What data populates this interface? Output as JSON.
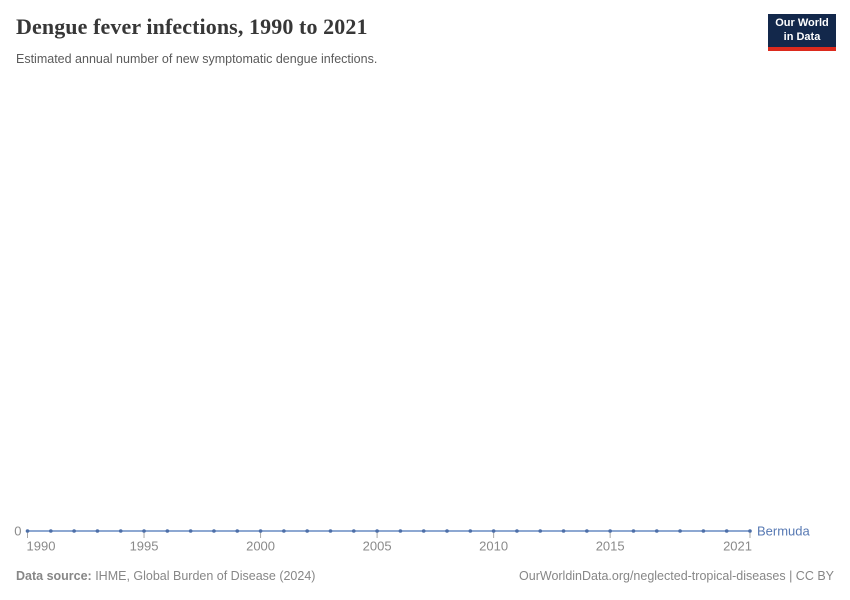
{
  "header": {
    "title": "Dengue fever infections, 1990 to 2021",
    "subtitle": "Estimated annual number of new symptomatic dengue infections.",
    "logo": {
      "line1": "Our World",
      "line2": "in Data",
      "bg_color": "#13284b",
      "accent_color": "#dc2a1d"
    }
  },
  "chart_data": {
    "type": "line",
    "title": "Dengue fever infections, 1990 to 2021",
    "xlabel": "",
    "ylabel": "",
    "x": [
      1990,
      1991,
      1992,
      1993,
      1994,
      1995,
      1996,
      1997,
      1998,
      1999,
      2000,
      2001,
      2002,
      2003,
      2004,
      2005,
      2006,
      2007,
      2008,
      2009,
      2010,
      2011,
      2012,
      2013,
      2014,
      2015,
      2016,
      2017,
      2018,
      2019,
      2020,
      2021
    ],
    "series": [
      {
        "name": "Bermuda",
        "values": [
          0,
          0,
          0,
          0,
          0,
          0,
          0,
          0,
          0,
          0,
          0,
          0,
          0,
          0,
          0,
          0,
          0,
          0,
          0,
          0,
          0,
          0,
          0,
          0,
          0,
          0,
          0,
          0,
          0,
          0,
          0,
          0
        ],
        "line_color": "#7d9bcb",
        "marker_color": "#4d6fa8",
        "label_color": "#5779b3"
      }
    ],
    "xticks": [
      "1990",
      "1995",
      "2000",
      "2005",
      "2010",
      "2015",
      "2021"
    ],
    "xtick_years": [
      1990,
      1995,
      2000,
      2005,
      2010,
      2015,
      2021
    ],
    "yticks": [
      "0"
    ],
    "ylim": [
      0,
      1
    ],
    "grid": false,
    "legend_position": "line-end",
    "end_label": "Bermuda",
    "axis_label_color": "#8a8a8a",
    "tick_color": "#a8a8a8"
  },
  "footer": {
    "source_label": "Data source:",
    "source_text": " IHME, Global Burden of Disease (2024)",
    "credit": "OurWorldinData.org/neglected-tropical-diseases | CC BY"
  }
}
